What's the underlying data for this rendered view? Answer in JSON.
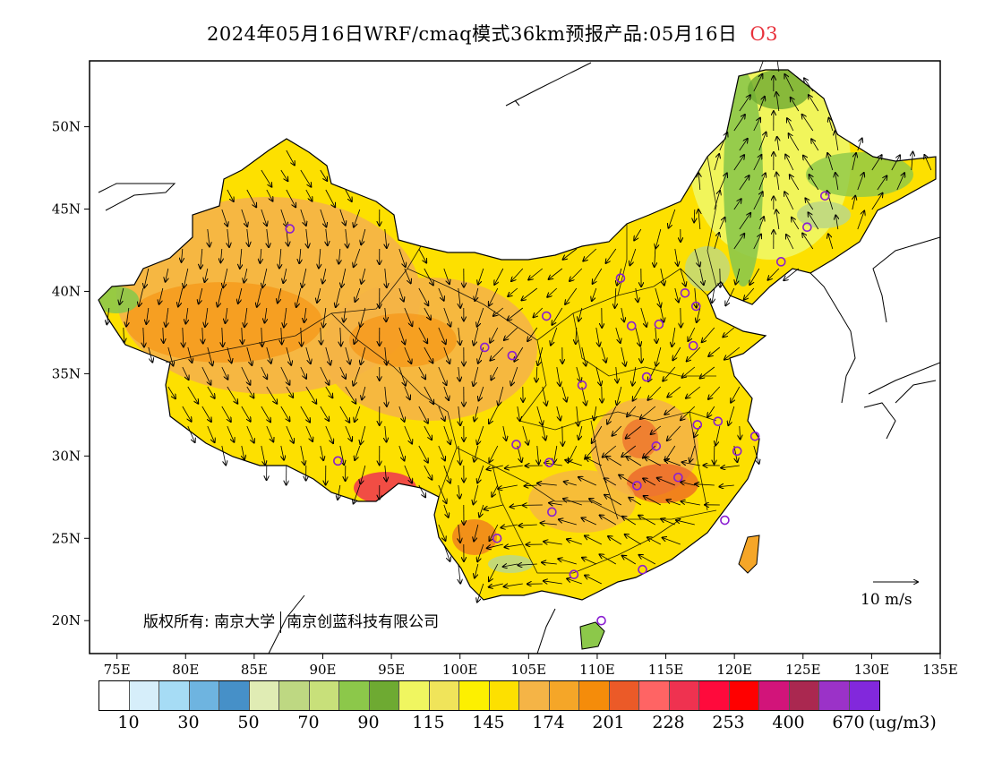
{
  "title": {
    "main": "2024年05月16日WRF/cmaq模式36km预报产品:05月16日",
    "pollutant": "O3"
  },
  "axes": {
    "lon_labels": [
      "75E",
      "80E",
      "85E",
      "90E",
      "95E",
      "100E",
      "105E",
      "110E",
      "115E",
      "120E",
      "125E",
      "130E",
      "135E"
    ],
    "lat_labels": [
      "50N",
      "45N",
      "40N",
      "35N",
      "30N",
      "25N",
      "20N"
    ],
    "lon_range": [
      73,
      135
    ],
    "lat_range": [
      18,
      54
    ]
  },
  "copyright": {
    "prefix": "版权所有:",
    "org1": "南京大学",
    "org2": "南京创蓝科技有限公司"
  },
  "wind_legend": {
    "label": "10 m/s",
    "value": 10
  },
  "colorbar": {
    "colors": [
      "#ffffff",
      "#d6eefa",
      "#a6dcf5",
      "#6eb4e0",
      "#4690c8",
      "#e0ecb4",
      "#bed882",
      "#c8e07a",
      "#8cc84a",
      "#6eaa32",
      "#f0f660",
      "#f0e45a",
      "#fdf000",
      "#fde000",
      "#f5b446",
      "#f5a628",
      "#f58c0a",
      "#eb5a28",
      "#ff6464",
      "#ef3250",
      "#ff0a3c",
      "#ff0000",
      "#d2147a",
      "#aa2850",
      "#9b32c8",
      "#8228dc"
    ],
    "tick_labels": [
      "10",
      "30",
      "50",
      "70",
      "90",
      "115",
      "145",
      "174",
      "201",
      "228",
      "253",
      "400",
      "670"
    ],
    "unit": "(ug/m3)"
  },
  "stations": [
    [
      87.6,
      43.8
    ],
    [
      101.8,
      36.6
    ],
    [
      103.8,
      36.1
    ],
    [
      106.3,
      38.5
    ],
    [
      111.7,
      40.8
    ],
    [
      116.4,
      39.9
    ],
    [
      117.2,
      39.1
    ],
    [
      114.5,
      38.0
    ],
    [
      112.5,
      37.9
    ],
    [
      117.0,
      36.7
    ],
    [
      113.6,
      34.8
    ],
    [
      108.9,
      34.3
    ],
    [
      104.1,
      30.7
    ],
    [
      106.5,
      29.6
    ],
    [
      106.7,
      26.6
    ],
    [
      102.7,
      25.0
    ],
    [
      108.3,
      22.8
    ],
    [
      113.3,
      23.1
    ],
    [
      110.3,
      20.0
    ],
    [
      112.9,
      28.2
    ],
    [
      115.9,
      28.7
    ],
    [
      114.3,
      30.6
    ],
    [
      117.3,
      31.9
    ],
    [
      118.8,
      32.1
    ],
    [
      120.2,
      30.3
    ],
    [
      121.5,
      31.2
    ],
    [
      119.3,
      26.1
    ],
    [
      91.1,
      29.7
    ],
    [
      125.3,
      43.9
    ],
    [
      126.6,
      45.8
    ],
    [
      123.4,
      41.8
    ]
  ]
}
